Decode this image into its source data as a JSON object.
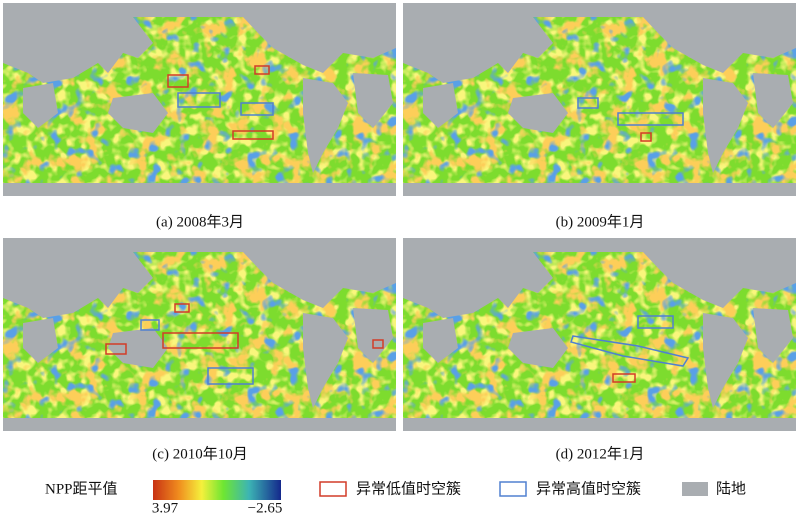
{
  "panels": [
    {
      "caption": "(a) 2008年3月"
    },
    {
      "caption": "(b) 2009年1月"
    },
    {
      "caption": "(c) 2010年10月"
    },
    {
      "caption": "(d) 2012年1月"
    }
  ],
  "legend": {
    "title": "NPP距平值",
    "colorbar_ticks": [
      3.97,
      {
        "value": -2.65,
        "label": "−2.65"
      }
    ],
    "items": [
      "异常低值时空簇",
      "异常高值时空簇",
      "陆地"
    ]
  }
}
